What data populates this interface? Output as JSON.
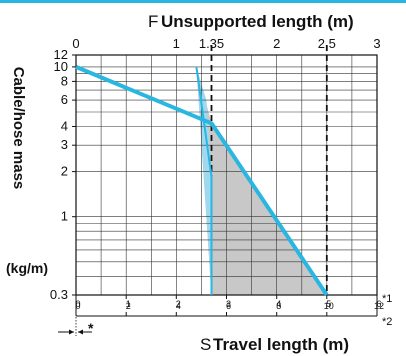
{
  "chart_data": {
    "type": "line",
    "title_top": "Unsupported length (m)",
    "title_top_letter": "F",
    "xlabel": "Travel length (m)",
    "xlabel_letter": "S",
    "ylabel": "Cable/hose mass",
    "ylabel_unit": "(kg/m)",
    "yscale": "log",
    "ylim": [
      0.3,
      12
    ],
    "y_ticks": [
      0.3,
      1,
      2,
      3,
      4,
      6,
      8,
      10,
      12
    ],
    "y_tick_labels": [
      "0.3",
      "1",
      "2",
      "3",
      "4",
      "6",
      "8",
      "10",
      "12"
    ],
    "top_axis": {
      "xlim": [
        0,
        3
      ],
      "ticks": [
        0,
        1,
        2,
        3
      ],
      "tick_labels": [
        "0",
        "1",
        "2",
        "3"
      ],
      "marked_values": [
        1.35,
        2.5
      ],
      "marked_labels": [
        "1.35",
        "2.5"
      ]
    },
    "bottom_axis_1": {
      "ticks": [
        0,
        1,
        2,
        3,
        4,
        5,
        6
      ],
      "tick_labels": [
        "0",
        "1",
        "2",
        "3",
        "4",
        "5",
        "6"
      ],
      "note": "*1"
    },
    "bottom_axis_2": {
      "ticks": [
        0,
        2,
        4,
        6,
        8,
        10,
        12
      ],
      "tick_labels": [
        "0",
        "2",
        "4",
        "6",
        "8",
        "10",
        "12"
      ],
      "note": "*2"
    },
    "offset_marker": "*",
    "series": [
      {
        "color": "#29b6e0",
        "width": 4,
        "x": [
          0.0,
          1.35,
          2.5
        ],
        "y": [
          10,
          4.2,
          0.3
        ]
      },
      {
        "color": "#29b6e0",
        "width": 2,
        "x": [
          1.2,
          1.35,
          1.35
        ],
        "y": [
          10,
          1.85,
          0.3
        ]
      }
    ],
    "shaded_region": {
      "fill": "#c8c8c8",
      "x": [
        1.2,
        1.35,
        2.5,
        1.35
      ],
      "y": [
        10,
        4.2,
        0.3,
        0.3
      ]
    },
    "light_wedge": {
      "fill": "#9fd8ef",
      "x": [
        1.2,
        1.3,
        1.35,
        1.35
      ],
      "y": [
        10,
        6,
        1.85,
        0.3
      ]
    },
    "dashed_verticals_x": [
      1.35,
      2.5
    ],
    "grid": true
  }
}
